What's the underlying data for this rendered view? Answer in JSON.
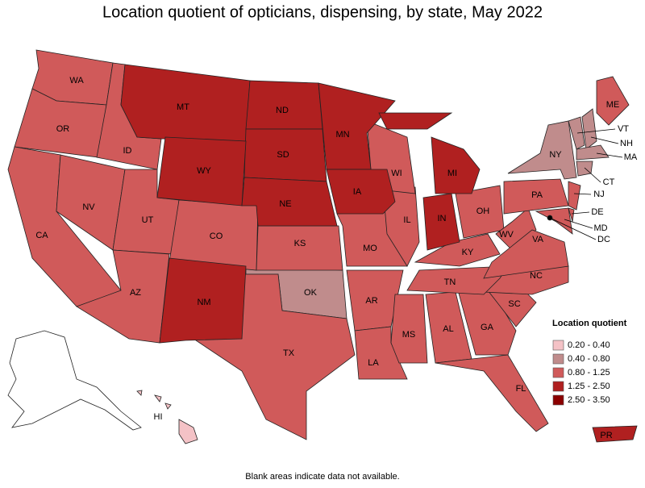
{
  "title": "Location quotient of opticians, dispensing, by state, May 2022",
  "legend": {
    "title": "Location quotient",
    "items": [
      {
        "label": "0.20 - 0.40",
        "color": "#f4c2c6",
        "states": [
          "HI"
        ]
      },
      {
        "label": "0.40 - 0.80",
        "color": "#c08c8c",
        "states": [
          "NY",
          "OK",
          "VT",
          "NH",
          "MA",
          "CT"
        ]
      },
      {
        "label": "0.80 - 1.25",
        "color": "#d05a5a",
        "states": [
          "WA",
          "OR",
          "CA",
          "ID",
          "NV",
          "UT",
          "AZ",
          "CO",
          "KS",
          "TX",
          "MO",
          "AR",
          "LA",
          "MS",
          "AL",
          "GA",
          "FL",
          "SC",
          "NC",
          "TN",
          "KY",
          "IL",
          "WI",
          "OH",
          "WV",
          "VA",
          "PA",
          "NJ",
          "DE",
          "MD",
          "DC",
          "ME"
        ]
      },
      {
        "label": "1.25 - 2.50",
        "color": "#b02020",
        "states": [
          "MT",
          "ND",
          "SD",
          "WY",
          "NE",
          "MN",
          "IA",
          "MI",
          "IN",
          "NM",
          "PR"
        ]
      },
      {
        "label": "2.50 - 3.50",
        "color": "#8b0000",
        "states": []
      }
    ]
  },
  "footnote": "Blank areas indicate data not available."
}
